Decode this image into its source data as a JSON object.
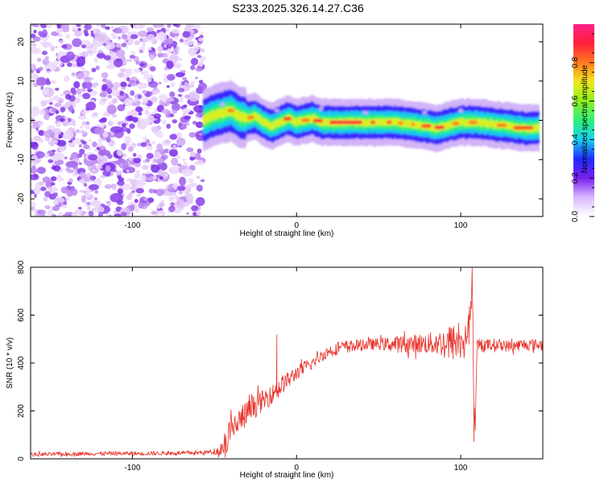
{
  "title": "S233.2025.326.14.27.C36",
  "chart_data": [
    {
      "type": "heatmap",
      "xlabel": "Height of straight line (km)",
      "ylabel": "Frequency (Hz)",
      "xlim": [
        -162,
        150
      ],
      "ylim": [
        -24.5,
        24.5
      ],
      "xticks": [
        -100,
        0,
        100
      ],
      "yticks": [
        -20,
        -10,
        0,
        10,
        20
      ],
      "grid": false,
      "noise_region_x": [
        -162,
        -57
      ],
      "ridge": {
        "x": [
          -57,
          -52,
          -48,
          -44,
          -40,
          -35,
          -30,
          -25,
          -20,
          -15,
          -10,
          -5,
          0,
          5,
          10,
          15,
          20,
          30,
          40,
          50,
          60,
          70,
          80,
          85,
          90,
          95,
          100,
          110,
          120,
          130,
          140,
          148
        ],
        "freq": [
          0,
          1,
          1.5,
          2,
          2.5,
          1,
          0.5,
          1,
          -0.5,
          -1.5,
          -0.5,
          0.5,
          -0.5,
          0,
          0.5,
          -0.5,
          -0.5,
          -0.5,
          -0.5,
          -0.5,
          -0.5,
          -1,
          -1.5,
          -2,
          -1.5,
          -1,
          -0.5,
          -0.5,
          -1,
          -1.5,
          -2,
          -2
        ]
      },
      "colorbar": {
        "label": "Normalized spectral amplitude",
        "range": [
          0,
          1
        ],
        "ticks": [
          "0.0",
          "0.2",
          "0.4",
          "0.6",
          "0.8"
        ],
        "colors": [
          "#ffffff",
          "#d9b8ff",
          "#7a1ff0",
          "#1f2bff",
          "#18d3f0",
          "#2ef07a",
          "#8cf020",
          "#f0e81f",
          "#ff7a1f",
          "#ff1f3a",
          "#ff1f8c"
        ]
      }
    },
    {
      "type": "line",
      "xlabel": "Height of straight line (km)",
      "ylabel": "SNR (10 * v/v)",
      "xlim": [
        -162,
        150
      ],
      "ylim": [
        0,
        800
      ],
      "xticks": [
        -100,
        0,
        100
      ],
      "yticks": [
        0,
        200,
        400,
        600,
        800
      ],
      "grid": false,
      "series": [
        {
          "color": "#e8322a",
          "x": [
            -162,
            -140,
            -120,
            -100,
            -80,
            -60,
            -50,
            -47,
            -44,
            -42,
            -40,
            -38,
            -36,
            -33,
            -30,
            -27,
            -24,
            -21,
            -18,
            -15,
            -12,
            -10,
            -8,
            -5,
            -2,
            0,
            5,
            10,
            15,
            20,
            25,
            30,
            40,
            50,
            60,
            70,
            80,
            90,
            95,
            100,
            103,
            105,
            106,
            107,
            108,
            109,
            110,
            115,
            120,
            130,
            140,
            150
          ],
          "y": [
            18,
            20,
            22,
            22,
            23,
            25,
            30,
            35,
            60,
            90,
            110,
            130,
            150,
            170,
            190,
            210,
            230,
            240,
            255,
            270,
            290,
            300,
            315,
            330,
            345,
            360,
            380,
            400,
            430,
            450,
            460,
            470,
            475,
            480,
            478,
            480,
            482,
            484,
            486,
            490,
            500,
            560,
            620,
            760,
            200,
            150,
            470,
            475,
            478,
            470,
            478,
            475
          ],
          "noise": [
            8,
            8,
            8,
            8,
            8,
            8,
            10,
            20,
            60,
            70,
            70,
            60,
            60,
            60,
            55,
            50,
            50,
            45,
            45,
            40,
            40,
            40,
            40,
            35,
            35,
            30,
            30,
            25,
            25,
            25,
            25,
            25,
            25,
            25,
            35,
            40,
            45,
            60,
            80,
            70,
            60,
            60,
            60,
            40,
            40,
            40,
            30,
            25,
            25,
            25,
            25,
            25
          ],
          "spikes": [
            {
              "x": -12,
              "y": 520
            },
            {
              "x": 107,
              "y": 800
            },
            {
              "x": 108,
              "y": 70
            }
          ]
        }
      ]
    }
  ]
}
